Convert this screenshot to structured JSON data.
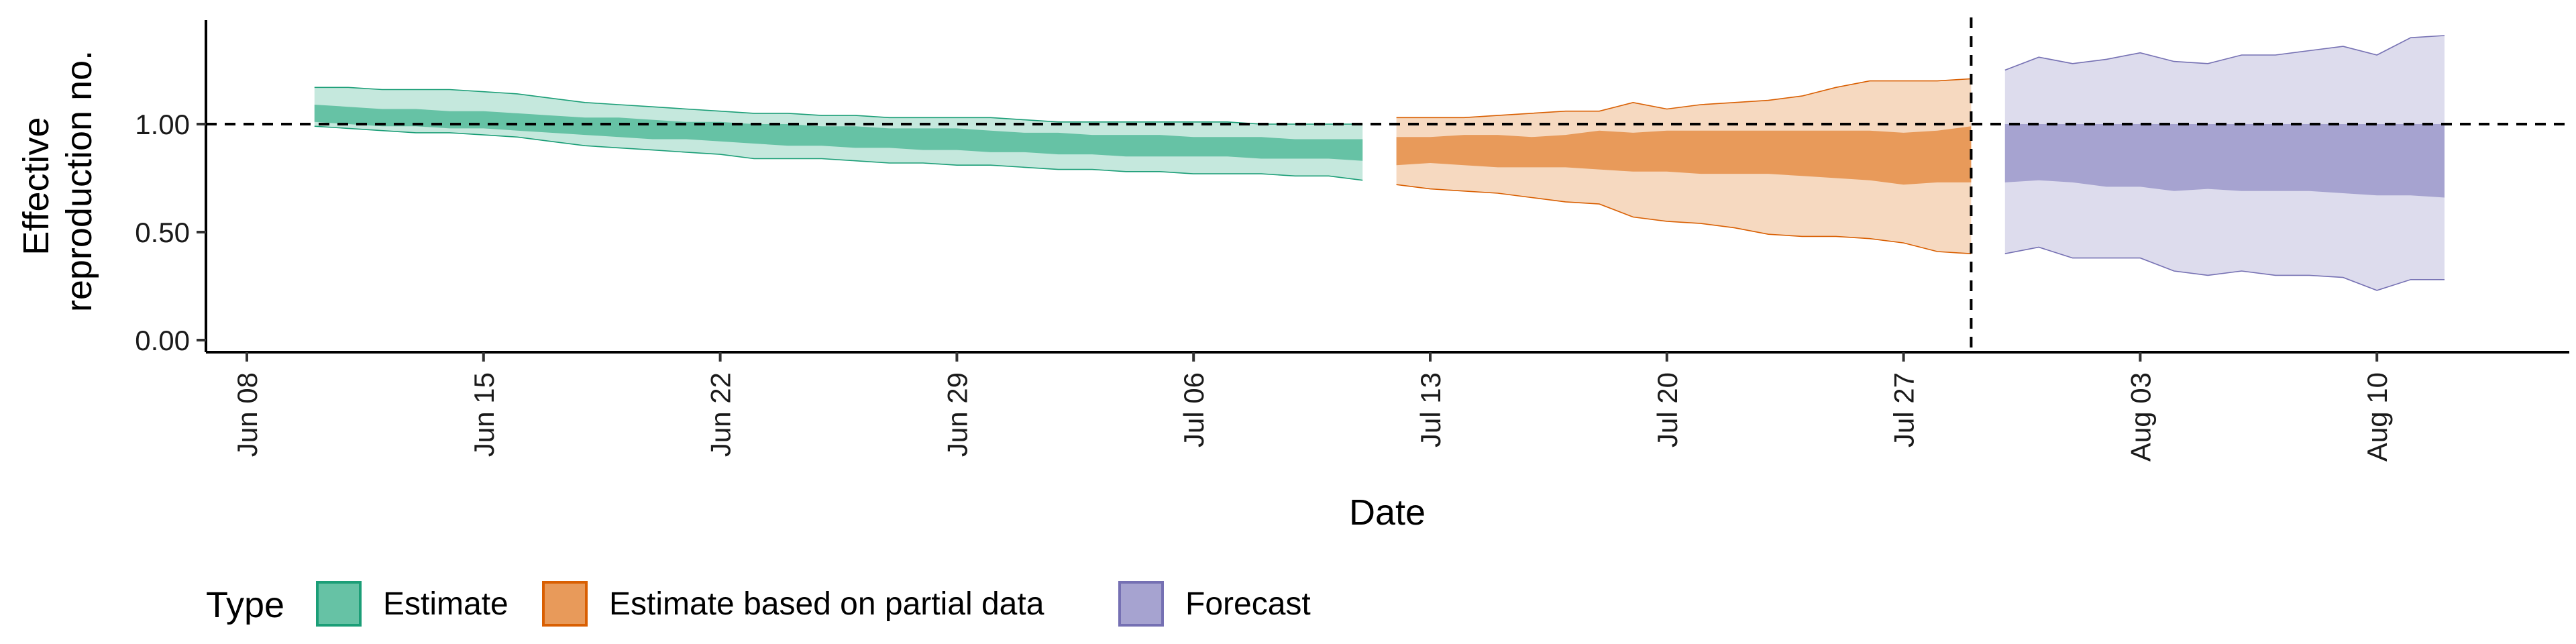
{
  "chart_data": {
    "type": "area",
    "xlabel": "Date",
    "ylabel_lines": [
      "Effective",
      "reproduction no."
    ],
    "ylim": [
      0,
      1.5
    ],
    "y_ticks": [
      0.0,
      0.5,
      1.0
    ],
    "y_tick_labels": [
      "0.00",
      "0.50",
      "1.00"
    ],
    "x_ticks": [
      "2020-06-08",
      "2020-06-15",
      "2020-06-22",
      "2020-06-29",
      "2020-07-06",
      "2020-07-13",
      "2020-07-20",
      "2020-07-27",
      "2020-08-03",
      "2020-08-10"
    ],
    "x_tick_labels": [
      "Jun 08",
      "Jun 15",
      "Jun 22",
      "Jun 29",
      "Jul 06",
      "Jul 13",
      "Jul 20",
      "Jul 27",
      "Aug 03",
      "Aug 10"
    ],
    "xlim": [
      "2020-06-07",
      "2020-08-15"
    ],
    "reference_line_y": 1.0,
    "forecast_start_date": "2020-07-29",
    "legend": {
      "title": "Type",
      "placement": "bottom-left",
      "entries": [
        "Estimate",
        "Estimate based on partial data",
        "Forecast"
      ]
    },
    "series": [
      {
        "name": "Estimate",
        "fill_color": "#66c2a5",
        "line_color": "#1b9e77",
        "dates": [
          "2020-06-10",
          "2020-06-11",
          "2020-06-12",
          "2020-06-13",
          "2020-06-14",
          "2020-06-15",
          "2020-06-16",
          "2020-06-17",
          "2020-06-18",
          "2020-06-19",
          "2020-06-20",
          "2020-06-21",
          "2020-06-22",
          "2020-06-23",
          "2020-06-24",
          "2020-06-25",
          "2020-06-26",
          "2020-06-27",
          "2020-06-28",
          "2020-06-29",
          "2020-06-30",
          "2020-07-01",
          "2020-07-02",
          "2020-07-03",
          "2020-07-04",
          "2020-07-05",
          "2020-07-06",
          "2020-07-07",
          "2020-07-08",
          "2020-07-09",
          "2020-07-10",
          "2020-07-11"
        ],
        "lower_90": [
          0.99,
          0.98,
          0.97,
          0.96,
          0.96,
          0.95,
          0.94,
          0.92,
          0.9,
          0.89,
          0.88,
          0.87,
          0.86,
          0.84,
          0.84,
          0.84,
          0.83,
          0.82,
          0.82,
          0.81,
          0.81,
          0.8,
          0.79,
          0.79,
          0.78,
          0.78,
          0.77,
          0.77,
          0.77,
          0.76,
          0.76,
          0.74
        ],
        "upper_90": [
          1.17,
          1.17,
          1.16,
          1.16,
          1.16,
          1.15,
          1.14,
          1.12,
          1.1,
          1.09,
          1.08,
          1.07,
          1.06,
          1.05,
          1.05,
          1.04,
          1.04,
          1.03,
          1.03,
          1.03,
          1.03,
          1.02,
          1.01,
          1.01,
          1.01,
          1.01,
          1.01,
          1.01,
          1.0,
          1.0,
          1.0,
          1.0
        ],
        "lower_50": [
          1.01,
          1.0,
          0.99,
          0.99,
          0.98,
          0.98,
          0.97,
          0.96,
          0.95,
          0.94,
          0.93,
          0.93,
          0.92,
          0.91,
          0.9,
          0.9,
          0.89,
          0.89,
          0.88,
          0.88,
          0.87,
          0.87,
          0.86,
          0.86,
          0.85,
          0.85,
          0.85,
          0.85,
          0.84,
          0.84,
          0.84,
          0.83
        ],
        "upper_50": [
          1.09,
          1.08,
          1.07,
          1.07,
          1.06,
          1.06,
          1.05,
          1.04,
          1.03,
          1.03,
          1.02,
          1.01,
          1.01,
          1.0,
          1.0,
          0.99,
          0.99,
          0.98,
          0.98,
          0.98,
          0.97,
          0.96,
          0.96,
          0.95,
          0.95,
          0.95,
          0.94,
          0.94,
          0.94,
          0.93,
          0.93,
          0.93
        ]
      },
      {
        "name": "Estimate based on partial data",
        "fill_color": "#e89a5a",
        "line_color": "#d95f02",
        "dates": [
          "2020-07-12",
          "2020-07-13",
          "2020-07-14",
          "2020-07-15",
          "2020-07-16",
          "2020-07-17",
          "2020-07-18",
          "2020-07-19",
          "2020-07-20",
          "2020-07-21",
          "2020-07-22",
          "2020-07-23",
          "2020-07-24",
          "2020-07-25",
          "2020-07-26",
          "2020-07-27",
          "2020-07-28",
          "2020-07-29"
        ],
        "lower_90": [
          0.72,
          0.7,
          0.69,
          0.68,
          0.66,
          0.64,
          0.63,
          0.57,
          0.55,
          0.54,
          0.52,
          0.49,
          0.48,
          0.48,
          0.47,
          0.45,
          0.41,
          0.4
        ],
        "upper_90": [
          1.03,
          1.03,
          1.03,
          1.04,
          1.05,
          1.06,
          1.06,
          1.1,
          1.07,
          1.09,
          1.1,
          1.11,
          1.13,
          1.17,
          1.2,
          1.2,
          1.2,
          1.21
        ],
        "lower_50": [
          0.81,
          0.82,
          0.81,
          0.8,
          0.8,
          0.8,
          0.79,
          0.78,
          0.78,
          0.77,
          0.77,
          0.77,
          0.76,
          0.75,
          0.74,
          0.72,
          0.73,
          0.73
        ],
        "upper_50": [
          0.94,
          0.94,
          0.95,
          0.95,
          0.94,
          0.95,
          0.97,
          0.96,
          0.97,
          0.97,
          0.97,
          0.97,
          0.97,
          0.97,
          0.97,
          0.96,
          0.97,
          0.99
        ]
      },
      {
        "name": "Forecast",
        "fill_color": "#a6a3d0",
        "line_color": "#7570b3",
        "dates": [
          "2020-07-30",
          "2020-07-31",
          "2020-08-01",
          "2020-08-02",
          "2020-08-03",
          "2020-08-04",
          "2020-08-05",
          "2020-08-06",
          "2020-08-07",
          "2020-08-08",
          "2020-08-09",
          "2020-08-10",
          "2020-08-11",
          "2020-08-12"
        ],
        "lower_90": [
          0.4,
          0.43,
          0.38,
          0.38,
          0.38,
          0.32,
          0.3,
          0.32,
          0.3,
          0.3,
          0.29,
          0.23,
          0.28,
          0.28
        ],
        "upper_90": [
          1.25,
          1.31,
          1.28,
          1.3,
          1.33,
          1.29,
          1.28,
          1.32,
          1.32,
          1.34,
          1.36,
          1.32,
          1.4,
          1.41
        ],
        "lower_50": [
          0.73,
          0.74,
          0.73,
          0.71,
          0.71,
          0.69,
          0.7,
          0.69,
          0.69,
          0.69,
          0.68,
          0.67,
          0.67,
          0.66
        ],
        "upper_50": [
          1.0,
          1.0,
          1.0,
          1.0,
          1.0,
          1.0,
          1.0,
          1.0,
          1.0,
          1.0,
          1.0,
          1.0,
          1.0,
          1.0
        ]
      }
    ]
  }
}
